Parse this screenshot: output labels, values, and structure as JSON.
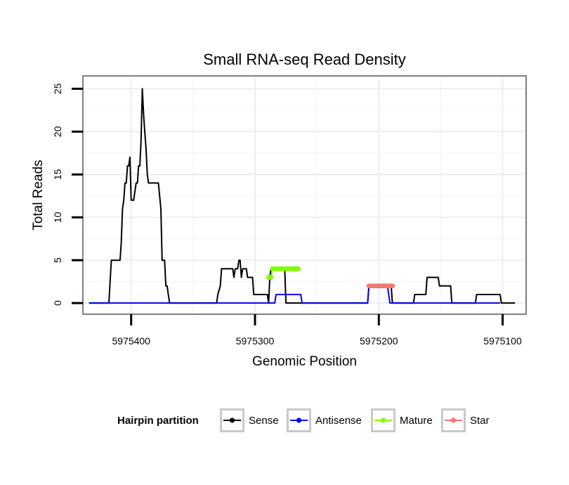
{
  "chart_data": {
    "type": "line",
    "title": "Small RNA-seq Read Density",
    "xlabel": "Genomic Position",
    "ylabel": "Total Reads",
    "x_reversed": true,
    "xlim": [
      5975439,
      5975081
    ],
    "ylim": [
      -1.3,
      26.5
    ],
    "xticks": [
      5975400,
      5975300,
      5975200,
      5975100
    ],
    "xtick_labels": [
      "5975400",
      "5975300",
      "5975200",
      "5975100"
    ],
    "yticks": [
      0,
      5,
      10,
      15,
      20,
      25
    ],
    "ytick_labels": [
      "0",
      "5",
      "10",
      "15",
      "20",
      "25"
    ],
    "grid": true,
    "legend": {
      "title": "Hairpin partition",
      "position": "bottom",
      "entries": [
        "Sense",
        "Antisense",
        "Mature",
        "Star"
      ]
    },
    "series": [
      {
        "name": "Sense",
        "color": "#000000",
        "style": "line",
        "points": [
          [
            5975434,
            0
          ],
          [
            5975418,
            0
          ],
          [
            5975416,
            5
          ],
          [
            5975409,
            5
          ],
          [
            5975408,
            7
          ],
          [
            5975407,
            11
          ],
          [
            5975406,
            12
          ],
          [
            5975405,
            14
          ],
          [
            5975404,
            14
          ],
          [
            5975403,
            16
          ],
          [
            5975402,
            16
          ],
          [
            5975401,
            17
          ],
          [
            5975400,
            12
          ],
          [
            5975398,
            12
          ],
          [
            5975397,
            13
          ],
          [
            5975396,
            14
          ],
          [
            5975395,
            14
          ],
          [
            5975394,
            16
          ],
          [
            5975393,
            16
          ],
          [
            5975392,
            19
          ],
          [
            5975391,
            25
          ],
          [
            5975390,
            22
          ],
          [
            5975389,
            20
          ],
          [
            5975388,
            18
          ],
          [
            5975387,
            15
          ],
          [
            5975386,
            14
          ],
          [
            5975378,
            14
          ],
          [
            5975376,
            11
          ],
          [
            5975375,
            5
          ],
          [
            5975373,
            5
          ],
          [
            5975372,
            2
          ],
          [
            5975371,
            2
          ],
          [
            5975370,
            1
          ],
          [
            5975369,
            0
          ],
          [
            5975331,
            0
          ],
          [
            5975330,
            1
          ],
          [
            5975328,
            2
          ],
          [
            5975327,
            4
          ],
          [
            5975318,
            4
          ],
          [
            5975317,
            3
          ],
          [
            5975316,
            4
          ],
          [
            5975314,
            4
          ],
          [
            5975313,
            5
          ],
          [
            5975312,
            5
          ],
          [
            5975311,
            3
          ],
          [
            5975310,
            4
          ],
          [
            5975307,
            4
          ],
          [
            5975306,
            3
          ],
          [
            5975302,
            3
          ],
          [
            5975301,
            1
          ],
          [
            5975290,
            1
          ],
          [
            5975289,
            0
          ],
          [
            5975288,
            3
          ],
          [
            5975287,
            4
          ],
          [
            5975276,
            4
          ],
          [
            5975275,
            0
          ],
          [
            5975209,
            0
          ],
          [
            5975208,
            2
          ],
          [
            5975190,
            2
          ],
          [
            5975189,
            0
          ],
          [
            5975172,
            0
          ],
          [
            5975171,
            1
          ],
          [
            5975162,
            1
          ],
          [
            5975161,
            3
          ],
          [
            5975152,
            3
          ],
          [
            5975151,
            2
          ],
          [
            5975142,
            2
          ],
          [
            5975141,
            0
          ],
          [
            5975122,
            0
          ],
          [
            5975121,
            1
          ],
          [
            5975102,
            1
          ],
          [
            5975101,
            0
          ],
          [
            5975090,
            0
          ]
        ]
      },
      {
        "name": "Antisense",
        "color": "#0000ff",
        "style": "line",
        "points": [
          [
            5975434,
            0
          ],
          [
            5975284,
            0
          ],
          [
            5975283,
            1
          ],
          [
            5975263,
            1
          ],
          [
            5975262,
            0
          ],
          [
            5975209,
            0
          ],
          [
            5975208,
            2
          ],
          [
            5975193,
            2
          ],
          [
            5975191,
            0
          ],
          [
            5975102,
            0
          ]
        ]
      },
      {
        "name": "Mature",
        "color": "#7fff00",
        "style": "points",
        "points": [
          [
            5975289,
            3
          ],
          [
            5975288,
            3
          ],
          [
            5975287,
            3
          ],
          [
            5975286,
            4
          ],
          [
            5975285,
            4
          ],
          [
            5975284,
            4
          ],
          [
            5975283,
            4
          ],
          [
            5975282,
            4
          ],
          [
            5975281,
            4
          ],
          [
            5975280,
            4
          ],
          [
            5975279,
            4
          ],
          [
            5975278,
            4
          ],
          [
            5975277,
            4
          ],
          [
            5975276,
            4
          ],
          [
            5975275,
            4
          ],
          [
            5975274,
            4
          ],
          [
            5975273,
            4
          ],
          [
            5975272,
            4
          ],
          [
            5975271,
            4
          ],
          [
            5975270,
            4
          ],
          [
            5975269,
            4
          ],
          [
            5975268,
            4
          ],
          [
            5975267,
            4
          ],
          [
            5975266,
            4
          ],
          [
            5975265,
            4
          ]
        ]
      },
      {
        "name": "Star",
        "color": "#f8766d",
        "style": "points",
        "points": [
          [
            5975208,
            2
          ],
          [
            5975207,
            2
          ],
          [
            5975206,
            2
          ],
          [
            5975205,
            2
          ],
          [
            5975204,
            2
          ],
          [
            5975203,
            2
          ],
          [
            5975202,
            2
          ],
          [
            5975201,
            2
          ],
          [
            5975200,
            2
          ],
          [
            5975199,
            2
          ],
          [
            5975198,
            2
          ],
          [
            5975197,
            2
          ],
          [
            5975196,
            2
          ],
          [
            5975195,
            2
          ],
          [
            5975194,
            2
          ],
          [
            5975193,
            2
          ],
          [
            5975192,
            2
          ],
          [
            5975191,
            2
          ],
          [
            5975190,
            2
          ],
          [
            5975189,
            2
          ]
        ]
      }
    ]
  }
}
